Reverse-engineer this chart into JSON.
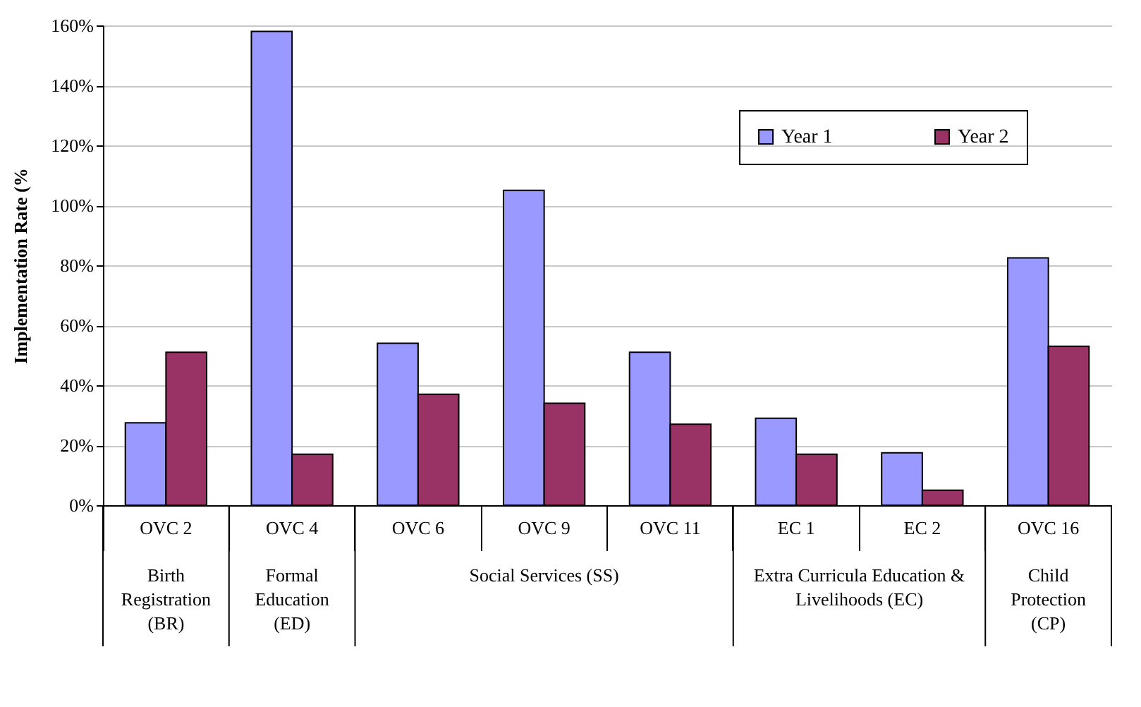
{
  "chart_data": {
    "type": "bar",
    "ylabel": "Implementation Rate (%",
    "categories": [
      "OVC 2",
      "OVC 4",
      "OVC 6",
      "OVC 9",
      "OVC 11",
      "EC 1",
      "EC 2",
      "OVC 16"
    ],
    "series": [
      {
        "name": "Year 1",
        "color": "#9999ff",
        "values": [
          27.5,
          158,
          54,
          105,
          51,
          29,
          17.5,
          82.5
        ]
      },
      {
        "name": "Year 2",
        "color": "#993366",
        "values": [
          51,
          17,
          37,
          34,
          27,
          17,
          5,
          53
        ]
      }
    ],
    "ylim": [
      0,
      160
    ],
    "yticks": [
      {
        "value": 0,
        "label": "0%"
      },
      {
        "value": 20,
        "label": "20%"
      },
      {
        "value": 40,
        "label": "40%"
      },
      {
        "value": 60,
        "label": "60%"
      },
      {
        "value": 80,
        "label": "80%"
      },
      {
        "value": 100,
        "label": "100%"
      },
      {
        "value": 120,
        "label": "120%"
      },
      {
        "value": 140,
        "label": "140%"
      },
      {
        "value": 160,
        "label": "160%"
      }
    ],
    "annotations": [
      "Birth Registration (BR)",
      "Formal Education (ED)",
      "Social Services (SS)",
      "Extra Curricula Education & Livelihoods (EC)",
      "Child Protection (CP)"
    ],
    "grid": "y",
    "legend": "top right"
  }
}
